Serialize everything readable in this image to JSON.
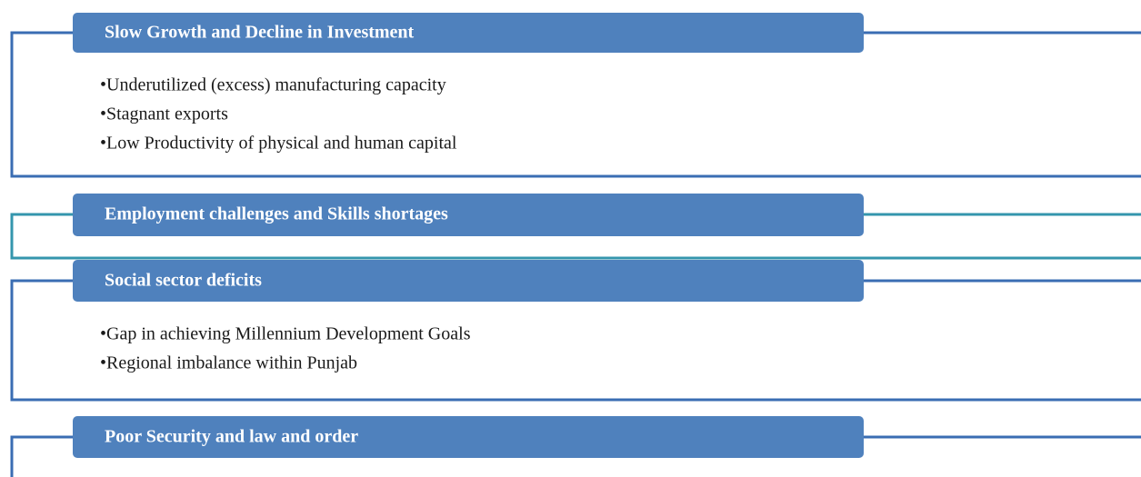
{
  "sections": [
    {
      "title": "Slow Growth and Decline in Investment",
      "items": [
        "•Underutilized (excess) manufacturing capacity",
        "•Stagnant exports",
        "•Low Productivity of physical and human capital"
      ]
    },
    {
      "title": "Employment challenges and Skills shortages",
      "items": []
    },
    {
      "title": "Social sector deficits",
      "items": [
        "•Gap in achieving Millennium Development Goals",
        "•Regional imbalance within Punjab"
      ]
    },
    {
      "title": "Poor Security and law and order",
      "items": []
    }
  ]
}
